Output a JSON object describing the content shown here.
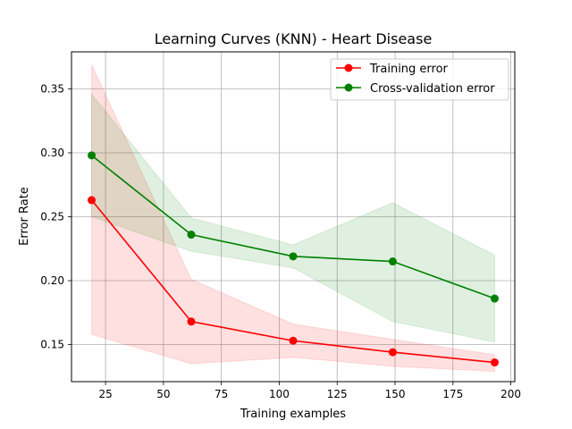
{
  "chart_data": {
    "type": "line",
    "title": "Learning Curves (KNN) - Heart Disease",
    "xlabel": "Training examples",
    "ylabel": "Error Rate",
    "xlim": [
      10.3,
      201.7
    ],
    "ylim": [
      0.121,
      0.379
    ],
    "x_ticks": [
      25,
      50,
      75,
      100,
      125,
      150,
      175,
      200
    ],
    "x_tick_labels": [
      "25",
      "50",
      "75",
      "100",
      "125",
      "150",
      "175",
      "200"
    ],
    "y_ticks": [
      0.15,
      0.2,
      0.25,
      0.3,
      0.35
    ],
    "y_tick_labels": [
      "0.15",
      "0.20",
      "0.25",
      "0.30",
      "0.35"
    ],
    "grid": true,
    "legend_position": "top-right",
    "x": [
      19,
      62,
      106,
      149,
      193
    ],
    "series": [
      {
        "name": "Training error",
        "color": "#ff0000",
        "band_color": "#ff0000",
        "values": [
          0.263,
          0.168,
          0.153,
          0.144,
          0.136
        ],
        "upper": [
          0.369,
          0.201,
          0.166,
          0.154,
          0.142
        ],
        "lower": [
          0.158,
          0.135,
          0.14,
          0.133,
          0.129
        ]
      },
      {
        "name": "Cross-validation error",
        "color": "#008000",
        "band_color": "#008000",
        "values": [
          0.298,
          0.236,
          0.219,
          0.215,
          0.186
        ],
        "upper": [
          0.346,
          0.249,
          0.228,
          0.261,
          0.22
        ],
        "lower": [
          0.25,
          0.223,
          0.21,
          0.168,
          0.152
        ]
      }
    ]
  }
}
